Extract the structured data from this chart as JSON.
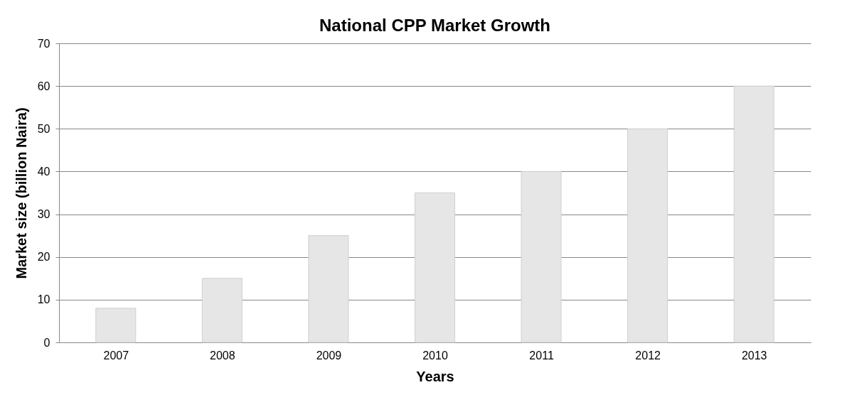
{
  "chart_data": {
    "type": "bar",
    "title": "National CPP Market Growth",
    "xlabel": "Years",
    "ylabel": "Market size (billion Naira)",
    "categories": [
      "2007",
      "2008",
      "2009",
      "2010",
      "2011",
      "2012",
      "2013"
    ],
    "values": [
      8,
      15,
      25,
      35,
      40,
      50,
      60
    ],
    "color": "#e6e6e6",
    "ylim": [
      0,
      70
    ],
    "yticks": [
      0,
      10,
      20,
      30,
      40,
      50,
      60,
      70
    ],
    "grid": "y"
  }
}
